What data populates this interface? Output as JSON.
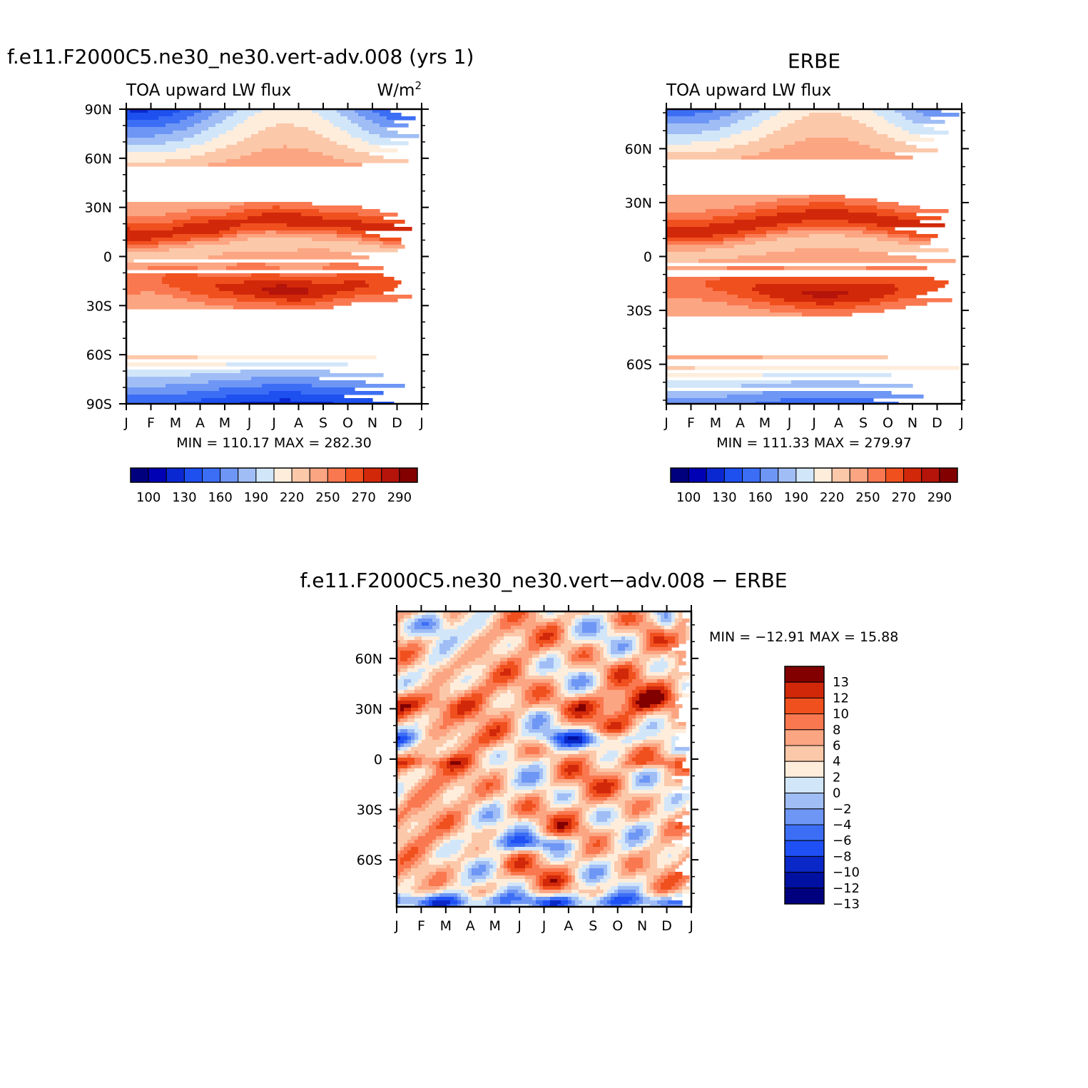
{
  "chart_data": [
    {
      "type": "heatmap",
      "id": "model",
      "title": "f.e11.F2000C5.ne30_ne30.vert-adv.008 (yrs 1)",
      "subtitle_left": "TOA upward LW flux",
      "units": "W/m",
      "units_sup": "2",
      "x_tick_labels": [
        "J",
        "F",
        "M",
        "A",
        "M",
        "J",
        "J",
        "A",
        "S",
        "O",
        "N",
        "D",
        "J"
      ],
      "y_tick_labels": [
        "90N",
        "60N",
        "30N",
        "0",
        "30S",
        "60S",
        "90S"
      ],
      "ylim": [
        -90,
        90
      ],
      "stats": "MIN = 110.17 MAX = 282.30",
      "min": 110.17,
      "max": 282.3
    },
    {
      "type": "heatmap",
      "id": "obs",
      "title": "ERBE",
      "subtitle_left": "TOA upward LW flux",
      "x_tick_labels": [
        "J",
        "F",
        "M",
        "A",
        "M",
        "J",
        "J",
        "A",
        "S",
        "O",
        "N",
        "D",
        "J"
      ],
      "y_tick_labels": [
        "60N",
        "30N",
        "0",
        "30S",
        "60S"
      ],
      "ylim": [
        -82,
        82
      ],
      "stats": "MIN = 111.33 MAX = 279.97",
      "min": 111.33,
      "max": 279.97
    },
    {
      "type": "heatmap",
      "id": "diff",
      "title": "f.e11.F2000C5.ne30_ne30.vert−adv.008 − ERBE",
      "x_tick_labels": [
        "J",
        "F",
        "M",
        "A",
        "M",
        "J",
        "J",
        "A",
        "S",
        "O",
        "N",
        "D",
        "J"
      ],
      "y_tick_labels": [
        "60N",
        "30N",
        "0",
        "30S",
        "60S"
      ],
      "ylim": [
        -88,
        88
      ],
      "stats": "MIN = −12.91 MAX =   15.88",
      "min": -12.91,
      "max": 15.88
    }
  ],
  "colorbars": {
    "absolute": {
      "colors": [
        "#00007f",
        "#0000b4",
        "#0a28d2",
        "#1e50f0",
        "#3c6ef5",
        "#6e96f5",
        "#a0bef5",
        "#d2e6fa",
        "#ffeddc",
        "#fcc8aa",
        "#fca582",
        "#fa7850",
        "#f0501e",
        "#d2280a",
        "#b4140a",
        "#820000"
      ],
      "labels": [
        "100",
        "130",
        "160",
        "190",
        "220",
        "250",
        "270",
        "290"
      ]
    },
    "difference": {
      "colors": [
        "#00007f",
        "#0010a0",
        "#0a28c8",
        "#1e50f5",
        "#3c6ef5",
        "#6e96f5",
        "#a0bef5",
        "#d2e6fa",
        "#ffeddc",
        "#fcc8aa",
        "#fca582",
        "#fa7850",
        "#f0501e",
        "#d2280a",
        "#820000"
      ],
      "labels": [
        "13",
        "12",
        "10",
        "8",
        "6",
        "4",
        "2",
        "0",
        "−2",
        "−4",
        "−6",
        "−8",
        "−10",
        "−12",
        "−13"
      ]
    }
  }
}
